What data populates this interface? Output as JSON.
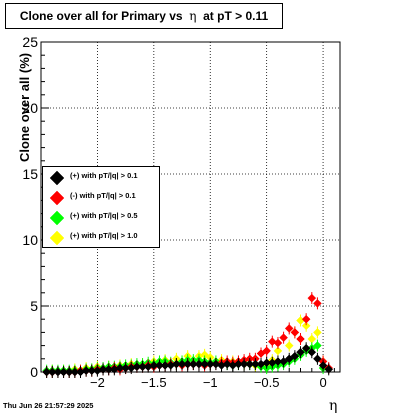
{
  "title": {
    "prefix": "Clone  over all for Primary vs",
    "symbol": "η",
    "suffix": "at pT > 0.11"
  },
  "timestamp": "Thu Jun 26 21:57:29 2025",
  "legend": [
    {
      "label": "(+) with pT/|q| > 0.1",
      "color": "#000000"
    },
    {
      "label": "(-) with pT/|q| > 0.1",
      "color": "#ff0000"
    },
    {
      "label": "(+) with pT/|q| > 0.5",
      "color": "#00ff00"
    },
    {
      "label": "(+) with pT/|q| > 1.0",
      "color": "#ffff00"
    }
  ],
  "chart_data": {
    "type": "scatter",
    "title": "Clone  over all for Primary vs η at pT > 0.11",
    "xlabel": "η",
    "ylabel": "Clone  over all (%)",
    "xlim": [
      -2.5,
      0.15
    ],
    "ylim": [
      0,
      25
    ],
    "x_ticks": [
      -2,
      -1.5,
      -1,
      -0.5,
      0
    ],
    "x_tick_labels": [
      "−2",
      "−1.5",
      "−1",
      "−0.5",
      "0"
    ],
    "y_ticks": [
      0,
      5,
      10,
      15,
      20,
      25
    ],
    "y_tick_labels": [
      "0",
      "5",
      "10",
      "15",
      "20",
      "25"
    ],
    "grid": true,
    "legend_position": "left",
    "series": [
      {
        "name": "(+) with pT/|q| > 0.1",
        "color": "#000000",
        "x": [
          -2.45,
          -2.4,
          -2.35,
          -2.3,
          -2.25,
          -2.2,
          -2.15,
          -2.1,
          -2.05,
          -2.0,
          -1.95,
          -1.9,
          -1.85,
          -1.8,
          -1.75,
          -1.7,
          -1.65,
          -1.6,
          -1.55,
          -1.5,
          -1.45,
          -1.4,
          -1.35,
          -1.3,
          -1.25,
          -1.2,
          -1.15,
          -1.1,
          -1.05,
          -1.0,
          -0.95,
          -0.9,
          -0.85,
          -0.8,
          -0.75,
          -0.7,
          -0.65,
          -0.6,
          -0.55,
          -0.5,
          -0.45,
          -0.4,
          -0.35,
          -0.3,
          -0.25,
          -0.2,
          -0.15,
          -0.1,
          -0.05,
          0.0,
          0.05
        ],
        "y": [
          0,
          0,
          0,
          0,
          0,
          0,
          0,
          0.1,
          0.1,
          0.1,
          0.2,
          0.2,
          0.2,
          0.3,
          0.3,
          0.3,
          0.4,
          0.4,
          0.4,
          0.5,
          0.5,
          0.5,
          0.5,
          0.6,
          0.6,
          0.6,
          0.6,
          0.6,
          0.6,
          0.6,
          0.6,
          0.5,
          0.6,
          0.5,
          0.6,
          0.6,
          0.6,
          0.6,
          0.6,
          0.7,
          0.7,
          0.8,
          0.8,
          1.0,
          1.2,
          1.5,
          1.8,
          1.5,
          1.0,
          0.5,
          0.2
        ]
      },
      {
        "name": "(-) with pT/|q| > 0.1",
        "color": "#ff0000",
        "x": [
          -2.45,
          -2.4,
          -2.35,
          -2.3,
          -2.25,
          -2.2,
          -2.15,
          -2.1,
          -2.05,
          -2.0,
          -1.95,
          -1.9,
          -1.85,
          -1.8,
          -1.75,
          -1.7,
          -1.65,
          -1.6,
          -1.55,
          -1.5,
          -1.45,
          -1.4,
          -1.35,
          -1.3,
          -1.25,
          -1.2,
          -1.15,
          -1.1,
          -1.05,
          -1.0,
          -0.95,
          -0.9,
          -0.85,
          -0.8,
          -0.75,
          -0.7,
          -0.65,
          -0.6,
          -0.55,
          -0.5,
          -0.45,
          -0.4,
          -0.35,
          -0.3,
          -0.25,
          -0.2,
          -0.15,
          -0.1,
          -0.05,
          0.0,
          0.05
        ],
        "y": [
          0,
          0,
          0,
          0,
          0,
          0,
          0.1,
          0.1,
          0.1,
          0.2,
          0.2,
          0.2,
          0.3,
          0.2,
          0.3,
          0.4,
          0.4,
          0.4,
          0.5,
          0.4,
          0.5,
          0.5,
          0.6,
          0.6,
          0.5,
          0.6,
          0.6,
          0.6,
          0.5,
          0.6,
          0.6,
          0.7,
          0.8,
          0.7,
          0.8,
          0.9,
          1.0,
          1.0,
          1.4,
          1.6,
          2.3,
          2.2,
          2.6,
          3.3,
          3.0,
          2.5,
          4.0,
          5.6,
          5.2,
          0.8,
          0.3
        ]
      },
      {
        "name": "(+) with pT/|q| > 0.5",
        "color": "#00ff00",
        "x": [
          -2.45,
          -2.4,
          -2.35,
          -2.3,
          -2.25,
          -2.2,
          -2.15,
          -2.1,
          -2.05,
          -2.0,
          -1.95,
          -1.9,
          -1.85,
          -1.8,
          -1.75,
          -1.7,
          -1.65,
          -1.6,
          -1.55,
          -1.5,
          -1.45,
          -1.4,
          -1.35,
          -1.3,
          -1.25,
          -1.2,
          -1.15,
          -1.1,
          -1.05,
          -1.0,
          -0.95,
          -0.9,
          -0.85,
          -0.8,
          -0.75,
          -0.7,
          -0.65,
          -0.6,
          -0.55,
          -0.5,
          -0.45,
          -0.4,
          -0.35,
          -0.3,
          -0.25,
          -0.2,
          -0.15,
          -0.1,
          -0.05,
          0.0
        ],
        "y": [
          0.1,
          0.1,
          0.1,
          0.1,
          0.1,
          0.1,
          0.1,
          0.2,
          0.2,
          0.3,
          0.3,
          0.4,
          0.4,
          0.4,
          0.5,
          0.5,
          0.6,
          0.6,
          0.7,
          0.6,
          0.8,
          0.8,
          0.7,
          0.6,
          0.8,
          0.9,
          0.9,
          0.9,
          0.8,
          0.7,
          0.8,
          0.7,
          0.6,
          0.6,
          0.6,
          0.7,
          0.6,
          0.6,
          0.4,
          0.3,
          0.4,
          0.5,
          0.6,
          0.8,
          1.0,
          1.3,
          1.6,
          1.8,
          2.0,
          0.3
        ]
      },
      {
        "name": "(+) with pT/|q| > 1.0",
        "color": "#ffff00",
        "x": [
          -2.4,
          -2.3,
          -2.2,
          -2.1,
          -2.0,
          -1.9,
          -1.8,
          -1.7,
          -1.6,
          -1.5,
          -1.4,
          -1.3,
          -1.2,
          -1.1,
          -1.05,
          -1.0,
          -0.9,
          -0.8,
          -0.7,
          -0.6,
          -0.5,
          -0.45,
          -0.4,
          -0.3,
          -0.25,
          -0.2,
          -0.15,
          -0.1,
          -0.05,
          0.0
        ],
        "y": [
          0.1,
          0.1,
          0.2,
          0.3,
          0.4,
          0.4,
          0.5,
          0.6,
          0.6,
          0.8,
          0.9,
          1.0,
          1.2,
          1.2,
          1.3,
          1.1,
          0.9,
          0.8,
          0.6,
          0.5,
          0.5,
          0.9,
          1.6,
          2.0,
          3.0,
          3.9,
          3.5,
          2.5,
          3.0,
          0.8
        ]
      }
    ]
  }
}
